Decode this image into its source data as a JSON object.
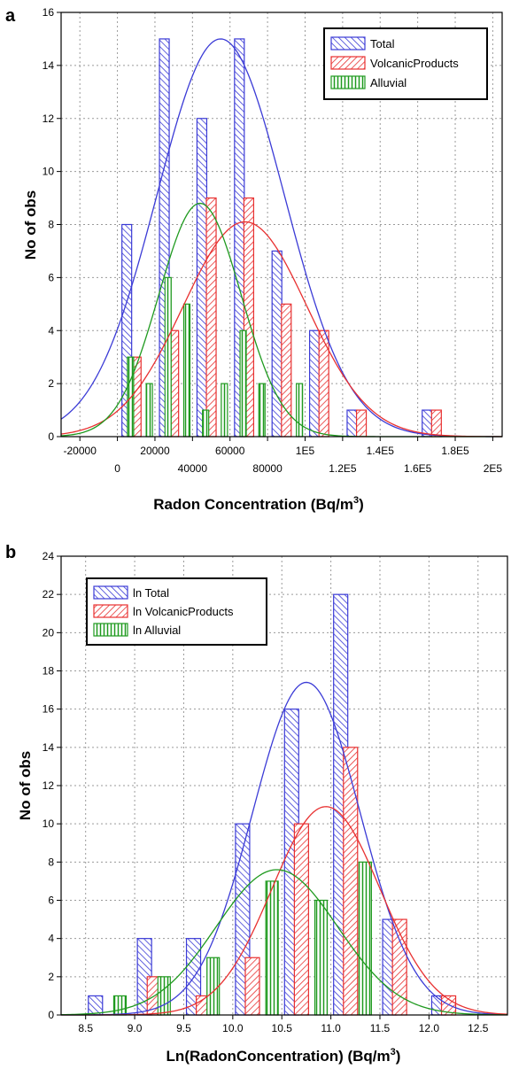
{
  "chart_data": [
    {
      "panel_label": "a",
      "type": "bar",
      "xlabel": "Radon Concentration (Bq/m",
      "xlabel_sup": "3",
      "xlabel_close": ")",
      "ylabel": "No of obs",
      "xlim": [
        -30000,
        205000
      ],
      "ylim": [
        0,
        16
      ],
      "x_ticks_upper": [
        "-20000",
        "20000",
        "60000",
        "1E5",
        "1.4E5",
        "1.8E5"
      ],
      "x_ticks_upper_values": [
        -20000,
        20000,
        60000,
        100000,
        140000,
        180000
      ],
      "x_ticks_lower": [
        "0",
        "40000",
        "80000",
        "1.2E5",
        "1.6E5",
        "2E5"
      ],
      "x_ticks_lower_values": [
        0,
        40000,
        80000,
        120000,
        160000,
        200000
      ],
      "y_ticks": [
        "0",
        "2",
        "4",
        "6",
        "8",
        "10",
        "12",
        "14",
        "16"
      ],
      "y_tick_values": [
        0,
        2,
        4,
        6,
        8,
        10,
        12,
        14,
        16
      ],
      "grid": true,
      "legend_position": "top-right",
      "series": [
        {
          "name": "Total",
          "color": "#3b3bd6",
          "pattern": "diag-left",
          "bars": [
            {
              "x": 5000,
              "value": 8
            },
            {
              "x": 25000,
              "value": 15
            },
            {
              "x": 45000,
              "value": 12
            },
            {
              "x": 65000,
              "value": 15
            },
            {
              "x": 85000,
              "value": 7
            },
            {
              "x": 105000,
              "value": 4
            },
            {
              "x": 125000,
              "value": 1
            },
            {
              "x": 165000,
              "value": 1
            }
          ],
          "curve": {
            "mean": 55000,
            "sd": 34000,
            "peak": 15
          }
        },
        {
          "name": "VolcanicProducts",
          "color": "#e83030",
          "pattern": "diag-right",
          "bars": [
            {
              "x": 10000,
              "value": 3
            },
            {
              "x": 30000,
              "value": 4
            },
            {
              "x": 50000,
              "value": 9
            },
            {
              "x": 70000,
              "value": 9
            },
            {
              "x": 90000,
              "value": 5
            },
            {
              "x": 110000,
              "value": 4
            },
            {
              "x": 130000,
              "value": 1
            },
            {
              "x": 170000,
              "value": 1
            }
          ],
          "curve": {
            "mean": 68000,
            "sd": 33000,
            "peak": 8.1
          }
        },
        {
          "name": "Alluvial",
          "color": "#1f9a1f",
          "pattern": "vertical",
          "bars": [
            {
              "x": 7000,
              "value": 3
            },
            {
              "x": 17000,
              "value": 2
            },
            {
              "x": 27000,
              "value": 6
            },
            {
              "x": 37000,
              "value": 5
            },
            {
              "x": 47000,
              "value": 1
            },
            {
              "x": 57000,
              "value": 2
            },
            {
              "x": 67000,
              "value": 4
            },
            {
              "x": 77000,
              "value": 2
            },
            {
              "x": 97000,
              "value": 2
            }
          ],
          "curve": {
            "mean": 44000,
            "sd": 22000,
            "peak": 8.8
          }
        }
      ]
    },
    {
      "panel_label": "b",
      "type": "bar",
      "xlabel": "Ln(RadonConcentration) (Bq/m",
      "xlabel_sup": "3",
      "xlabel_close": ")",
      "ylabel": "No of obs",
      "xlim": [
        8.25,
        12.8
      ],
      "ylim": [
        0,
        24
      ],
      "x_ticks": [
        "8.5",
        "9.0",
        "9.5",
        "10.0",
        "10.5",
        "11.0",
        "11.5",
        "12.0",
        "12.5"
      ],
      "x_tick_values": [
        8.5,
        9.0,
        9.5,
        10.0,
        10.5,
        11.0,
        11.5,
        12.0,
        12.5
      ],
      "y_ticks": [
        "0",
        "2",
        "4",
        "6",
        "8",
        "10",
        "12",
        "14",
        "16",
        "18",
        "20",
        "22",
        "24"
      ],
      "y_tick_values": [
        0,
        2,
        4,
        6,
        8,
        10,
        12,
        14,
        16,
        18,
        20,
        22,
        24
      ],
      "grid": true,
      "legend_position": "top-left",
      "series": [
        {
          "name": "ln Total",
          "color": "#3b3bd6",
          "pattern": "diag-left",
          "bars": [
            {
              "x": 8.6,
              "value": 1
            },
            {
              "x": 9.1,
              "value": 4
            },
            {
              "x": 9.6,
              "value": 4
            },
            {
              "x": 10.1,
              "value": 10
            },
            {
              "x": 10.6,
              "value": 16
            },
            {
              "x": 11.1,
              "value": 22
            },
            {
              "x": 11.6,
              "value": 5
            },
            {
              "x": 12.1,
              "value": 1
            }
          ],
          "curve": {
            "mean": 10.75,
            "sd": 0.55,
            "peak": 17.4
          }
        },
        {
          "name": "ln VolcanicProducts",
          "color": "#e83030",
          "pattern": "diag-right",
          "bars": [
            {
              "x": 9.2,
              "value": 2
            },
            {
              "x": 9.7,
              "value": 1
            },
            {
              "x": 10.2,
              "value": 3
            },
            {
              "x": 10.7,
              "value": 10
            },
            {
              "x": 11.2,
              "value": 14
            },
            {
              "x": 11.7,
              "value": 5
            },
            {
              "x": 12.2,
              "value": 1
            }
          ],
          "curve": {
            "mean": 10.95,
            "sd": 0.55,
            "peak": 10.9
          }
        },
        {
          "name": "ln Alluvial",
          "color": "#1f9a1f",
          "pattern": "vertical",
          "bars": [
            {
              "x": 8.85,
              "value": 1
            },
            {
              "x": 9.3,
              "value": 2
            },
            {
              "x": 9.8,
              "value": 3
            },
            {
              "x": 10.4,
              "value": 7
            },
            {
              "x": 10.9,
              "value": 6
            },
            {
              "x": 11.35,
              "value": 8
            }
          ],
          "curve": {
            "mean": 10.45,
            "sd": 0.62,
            "peak": 7.6
          }
        }
      ]
    }
  ]
}
